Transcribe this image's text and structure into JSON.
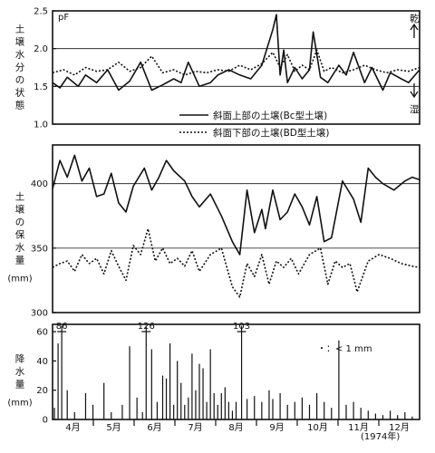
{
  "chart_data": [
    {
      "type": "line",
      "ylabel": "土壌水分の状態",
      "unit": "pF",
      "ylim": [
        1.0,
        2.5
      ],
      "yticks": [
        "2.5",
        "2.0",
        "1.5",
        "1.0"
      ],
      "dry_label": "乾",
      "wet_label": "湿",
      "series": [
        {
          "name": "斜面上部の土壌(Bc型土壌)",
          "style": "solid",
          "x": [
            0.0,
            0.02,
            0.04,
            0.07,
            0.09,
            0.12,
            0.15,
            0.18,
            0.21,
            0.24,
            0.27,
            0.3,
            0.33,
            0.35,
            0.37,
            0.4,
            0.43,
            0.45,
            0.48,
            0.51,
            0.54,
            0.57,
            0.6,
            0.61,
            0.62,
            0.63,
            0.64,
            0.66,
            0.68,
            0.7,
            0.71,
            0.73,
            0.75,
            0.78,
            0.8,
            0.82,
            0.85,
            0.87,
            0.9,
            0.92,
            0.95,
            0.97,
            1.0
          ],
          "y": [
            1.55,
            1.48,
            1.62,
            1.5,
            1.65,
            1.55,
            1.72,
            1.45,
            1.57,
            1.82,
            1.45,
            1.52,
            1.6,
            1.55,
            1.82,
            1.5,
            1.55,
            1.65,
            1.72,
            1.65,
            1.6,
            1.78,
            2.25,
            2.45,
            1.65,
            1.98,
            1.55,
            1.75,
            1.6,
            1.72,
            2.22,
            1.62,
            1.55,
            1.78,
            1.65,
            1.95,
            1.55,
            1.75,
            1.45,
            1.68,
            1.6,
            1.55,
            1.72
          ]
        },
        {
          "name": "斜面下部の土壌(BD型土壌)",
          "style": "dotted",
          "x": [
            0.0,
            0.03,
            0.06,
            0.09,
            0.12,
            0.15,
            0.18,
            0.21,
            0.24,
            0.27,
            0.3,
            0.33,
            0.36,
            0.39,
            0.42,
            0.45,
            0.48,
            0.51,
            0.54,
            0.57,
            0.6,
            0.62,
            0.64,
            0.66,
            0.68,
            0.7,
            0.72,
            0.74,
            0.76,
            0.79,
            0.82,
            0.85,
            0.88,
            0.91,
            0.94,
            0.97,
            1.0
          ],
          "y": [
            1.68,
            1.72,
            1.65,
            1.75,
            1.7,
            1.72,
            1.82,
            1.7,
            1.75,
            1.9,
            1.68,
            1.72,
            1.65,
            1.7,
            1.68,
            1.72,
            1.7,
            1.78,
            1.72,
            1.8,
            1.95,
            1.75,
            1.92,
            1.7,
            1.78,
            1.72,
            1.98,
            1.7,
            1.75,
            1.68,
            1.72,
            1.78,
            1.72,
            1.68,
            1.72,
            1.7,
            1.75
          ]
        }
      ]
    },
    {
      "type": "line",
      "ylabel": "土壌の保水量",
      "unit": "mm",
      "ylim": [
        300,
        430
      ],
      "yticks": [
        "400",
        "350",
        "300"
      ],
      "series": [
        {
          "name": "斜面上部の土壌(Bc型土壌)",
          "style": "solid",
          "x": [
            0.0,
            0.02,
            0.04,
            0.06,
            0.08,
            0.1,
            0.12,
            0.14,
            0.16,
            0.18,
            0.2,
            0.22,
            0.25,
            0.27,
            0.29,
            0.31,
            0.33,
            0.36,
            0.38,
            0.4,
            0.43,
            0.46,
            0.49,
            0.51,
            0.53,
            0.55,
            0.57,
            0.58,
            0.6,
            0.62,
            0.64,
            0.66,
            0.68,
            0.7,
            0.72,
            0.74,
            0.76,
            0.79,
            0.82,
            0.84,
            0.86,
            0.88,
            0.9,
            0.93,
            0.96,
            0.98,
            1.0
          ],
          "y": [
            396,
            418,
            405,
            422,
            402,
            412,
            390,
            392,
            408,
            385,
            378,
            398,
            412,
            395,
            405,
            418,
            410,
            402,
            390,
            382,
            392,
            375,
            355,
            345,
            395,
            362,
            380,
            365,
            395,
            372,
            378,
            392,
            382,
            368,
            390,
            355,
            358,
            402,
            388,
            370,
            412,
            405,
            400,
            395,
            402,
            405,
            403
          ]
        },
        {
          "name": "斜面下部の土壌(BD型土壌)",
          "style": "dotted",
          "x": [
            0.0,
            0.02,
            0.04,
            0.06,
            0.08,
            0.1,
            0.12,
            0.14,
            0.16,
            0.18,
            0.2,
            0.22,
            0.24,
            0.26,
            0.28,
            0.3,
            0.32,
            0.34,
            0.36,
            0.38,
            0.4,
            0.43,
            0.46,
            0.49,
            0.51,
            0.53,
            0.55,
            0.57,
            0.59,
            0.61,
            0.63,
            0.65,
            0.67,
            0.7,
            0.73,
            0.75,
            0.77,
            0.79,
            0.81,
            0.83,
            0.86,
            0.89,
            0.92,
            0.95,
            0.98,
            1.0
          ],
          "y": [
            335,
            338,
            340,
            332,
            345,
            338,
            342,
            330,
            348,
            336,
            325,
            352,
            345,
            365,
            340,
            350,
            338,
            342,
            336,
            348,
            332,
            345,
            350,
            320,
            312,
            338,
            328,
            345,
            322,
            340,
            335,
            342,
            330,
            345,
            350,
            322,
            340,
            335,
            338,
            316,
            340,
            345,
            342,
            338,
            336,
            335
          ]
        }
      ]
    },
    {
      "type": "bar",
      "ylabel": "降水量",
      "unit": "mm",
      "ylim": [
        0,
        65
      ],
      "yticks": [
        "60",
        "40",
        "20",
        "0"
      ],
      "note": "・：< 1 mm",
      "months": [
        "4月",
        "5月",
        "6月",
        "7月",
        "8月",
        "9月",
        "10月",
        "11月",
        "12月"
      ],
      "year_label": "(1974年)",
      "peak_labels": [
        {
          "value": "86",
          "x": 0.025
        },
        {
          "value": "126",
          "x": 0.255
        },
        {
          "value": "103",
          "x": 0.515
        }
      ],
      "bars": {
        "x": [
          0.005,
          0.015,
          0.025,
          0.04,
          0.06,
          0.09,
          0.11,
          0.14,
          0.16,
          0.19,
          0.21,
          0.23,
          0.245,
          0.255,
          0.27,
          0.285,
          0.3,
          0.31,
          0.32,
          0.33,
          0.34,
          0.35,
          0.36,
          0.37,
          0.38,
          0.39,
          0.4,
          0.41,
          0.42,
          0.43,
          0.44,
          0.45,
          0.46,
          0.47,
          0.48,
          0.49,
          0.5,
          0.515,
          0.53,
          0.55,
          0.57,
          0.59,
          0.6,
          0.62,
          0.64,
          0.66,
          0.68,
          0.7,
          0.72,
          0.74,
          0.76,
          0.78,
          0.8,
          0.82,
          0.84,
          0.86,
          0.88,
          0.9,
          0.92,
          0.94,
          0.96,
          0.98
        ],
        "values": [
          8,
          52,
          64,
          20,
          5,
          18,
          10,
          25,
          5,
          10,
          50,
          15,
          5,
          64,
          48,
          12,
          30,
          28,
          52,
          10,
          40,
          25,
          10,
          15,
          45,
          20,
          38,
          35,
          12,
          48,
          18,
          10,
          18,
          22,
          12,
          6,
          12,
          64,
          14,
          16,
          12,
          20,
          14,
          18,
          10,
          12,
          15,
          10,
          18,
          12,
          8,
          54,
          10,
          12,
          8,
          6,
          4,
          3,
          6,
          3,
          5,
          2
        ]
      }
    }
  ],
  "legend": [
    {
      "label": "斜面上部の土壌(Bc型土壌)",
      "style": "solid"
    },
    {
      "label": "斜面下部の土壌(BD型土壌)",
      "style": "dotted"
    }
  ]
}
